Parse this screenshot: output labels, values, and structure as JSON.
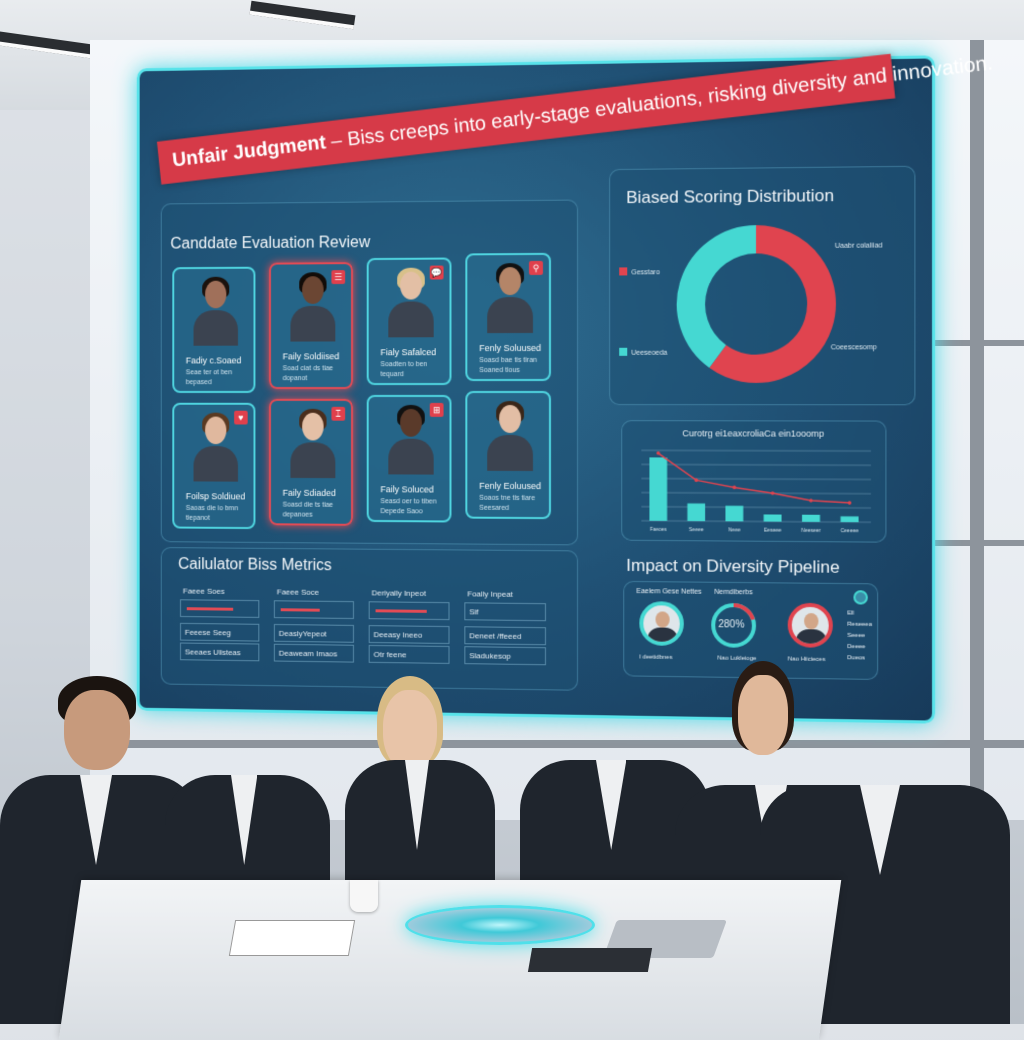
{
  "banner": {
    "bold": "Unfair Judgment",
    "text": " – Biss creeps into early-stage evaluations, risking diversity and innovation."
  },
  "candidates": {
    "title": "Canddate Evaluation Review",
    "cards": [
      {
        "name": "Fadiy c.Soaed",
        "sub1": "Seae ter ot ben",
        "sub2": "bepased",
        "flagged": false,
        "badge": ""
      },
      {
        "name": "Faily Soldiised",
        "sub1": "Soad ciat ds tiae",
        "sub2": "dopanot",
        "flagged": true,
        "badge": "☰"
      },
      {
        "name": "Fialy Safalced",
        "sub1": "Soadten to ben",
        "sub2": "tequard",
        "flagged": false,
        "badge": "💬"
      },
      {
        "name": "Fenly Soluused",
        "sub1": "Soasd bae tis tiran",
        "sub2": "Soaned tious",
        "flagged": false,
        "badge": "⚲"
      },
      {
        "name": "Foilsp Soldiued",
        "sub1": "Saoas die io bmn",
        "sub2": "tiepanot",
        "flagged": false,
        "badge": "♥"
      },
      {
        "name": "Faily Sdiaded",
        "sub1": "Soasd die ts tiae",
        "sub2": "depanoes",
        "flagged": true,
        "badge": "⌶"
      },
      {
        "name": "Faily Soluced",
        "sub1": "Seasd oer to tiben",
        "sub2": "Depede Saoo",
        "flagged": false,
        "badge": "⊞"
      },
      {
        "name": "Fenly Eoluused",
        "sub1": "Soaos tne tis tiare",
        "sub2": "Seesared",
        "flagged": false,
        "badge": ""
      }
    ]
  },
  "metrics": {
    "title": "Cailulator Biss Metrics",
    "columns": [
      {
        "header": "Faeee Soes",
        "bar": 0.6,
        "row2": "Feeese Seeg",
        "row3": "Seeaes Ulisteas"
      },
      {
        "header": "Faeee Soce",
        "bar": 0.5,
        "row2": "DeaslyYepeot",
        "row3": "Deaweam Imaos"
      },
      {
        "header": "Deriyally Inpeot",
        "bar": 0.65,
        "row2": "Deeasy Ineeo",
        "row3": "Otr feene"
      },
      {
        "header": "Foally Inpeat",
        "value": "Sif",
        "row2": "Deneet /ffeeed",
        "row3": "Sladukesop"
      }
    ]
  },
  "donut": {
    "title": "Biased Scoring Distribution",
    "chart_data": {
      "type": "pie",
      "values": [
        60,
        40
      ],
      "colors": [
        "#e0444f",
        "#45d8d2"
      ],
      "legend": [
        "Gesstaro",
        "Ueeseoeda"
      ],
      "callouts": [
        "Uaabr colaliiad",
        "Coeescesomp"
      ]
    }
  },
  "barchart": {
    "chart_data": {
      "type": "bar",
      "title": "Curotrg ei1eaxcroliaCa ein1ooomp",
      "categories": [
        "Faeoes",
        "Seeee",
        "Neee",
        "Eeseee",
        "Neeseer",
        "Ceeeee"
      ],
      "values": [
        90,
        25,
        22,
        10,
        10,
        8
      ],
      "line": [
        96,
        58,
        48,
        40,
        30,
        27
      ],
      "ylim": [
        0,
        100
      ],
      "bar_color": "#45d8d2",
      "line_color": "#e0444f",
      "grid": true
    }
  },
  "pipeline": {
    "title": "Impact on Diversity Pipeline",
    "labels": [
      "Eaelem Gese Nettes",
      "Nemdiberbs"
    ],
    "center_value": "280%",
    "progress": 0.8,
    "captions": [
      "I deetidbnes",
      "Nao Lukleioge",
      "Nao Hiicieces"
    ],
    "list": [
      "Ell",
      "Reseeea",
      "Seeee",
      "Deeee",
      "Dueos"
    ]
  },
  "colors": {
    "accent": "#4fd5e0",
    "alert": "#e0444f",
    "screen": "#1f4f73"
  }
}
